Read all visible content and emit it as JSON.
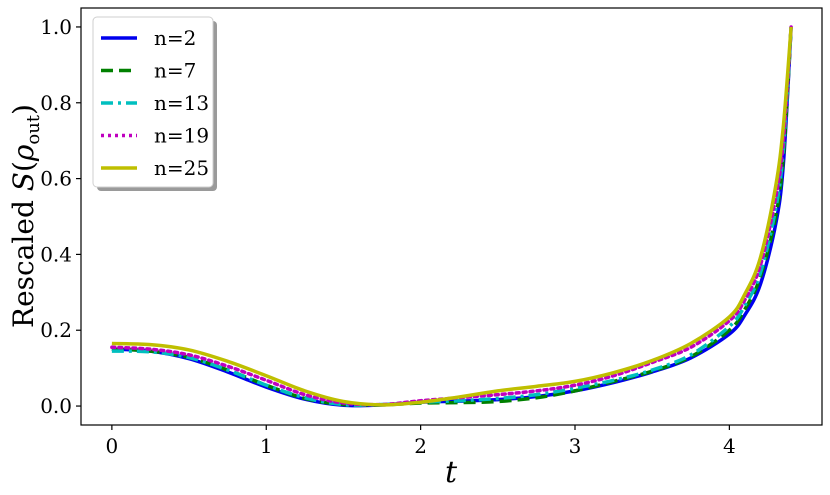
{
  "chart_data": {
    "type": "line",
    "title": "",
    "xlabel": "t",
    "ylabel": "Rescaled S(ρout)",
    "ylabel_parts": {
      "prefix": "Rescaled ",
      "S": "S",
      "open": "(",
      "rho": "ρ",
      "sub": "out",
      "close": ")"
    },
    "xlim": [
      -0.2,
      4.6
    ],
    "ylim": [
      -0.05,
      1.05
    ],
    "xticks": [
      0,
      1,
      2,
      3,
      4
    ],
    "xtick_labels": [
      "0",
      "1",
      "2",
      "3",
      "4"
    ],
    "yticks": [
      0.0,
      0.2,
      0.4,
      0.6,
      0.8,
      1.0
    ],
    "ytick_labels": [
      "0.0",
      "0.2",
      "0.4",
      "0.6",
      "0.8",
      "1.0"
    ],
    "grid": false,
    "legend_position": "top-left",
    "x": [
      0,
      0.25,
      0.5,
      0.75,
      1.0,
      1.25,
      1.5,
      1.75,
      2.0,
      2.25,
      2.5,
      2.75,
      3.0,
      3.25,
      3.5,
      3.75,
      4.0,
      4.1,
      4.2,
      4.3,
      4.35,
      4.4
    ],
    "series": [
      {
        "name": "n=2",
        "color": "#0000ee",
        "dash": "solid",
        "values": [
          0.15,
          0.145,
          0.125,
          0.09,
          0.05,
          0.018,
          0.002,
          0.003,
          0.01,
          0.013,
          0.017,
          0.025,
          0.04,
          0.062,
          0.09,
          0.127,
          0.19,
          0.24,
          0.32,
          0.48,
          0.64,
          1.0
        ]
      },
      {
        "name": "n=7",
        "color": "#008000",
        "dash": "dashed",
        "values": [
          0.15,
          0.145,
          0.128,
          0.095,
          0.055,
          0.02,
          0.004,
          0.003,
          0.008,
          0.009,
          0.012,
          0.022,
          0.04,
          0.065,
          0.092,
          0.13,
          0.2,
          0.255,
          0.34,
          0.5,
          0.66,
          1.0
        ]
      },
      {
        "name": "n=13",
        "color": "#00bfbf",
        "dash": "dashdot",
        "values": [
          0.145,
          0.143,
          0.128,
          0.095,
          0.055,
          0.022,
          0.004,
          0.004,
          0.01,
          0.014,
          0.02,
          0.03,
          0.047,
          0.068,
          0.095,
          0.135,
          0.21,
          0.265,
          0.35,
          0.52,
          0.68,
          1.0
        ]
      },
      {
        "name": "n=19",
        "color": "#bf00bf",
        "dash": "dotted",
        "values": [
          0.155,
          0.15,
          0.135,
          0.105,
          0.068,
          0.03,
          0.008,
          0.004,
          0.014,
          0.022,
          0.03,
          0.04,
          0.055,
          0.08,
          0.115,
          0.155,
          0.225,
          0.28,
          0.37,
          0.55,
          0.7,
          1.0
        ]
      },
      {
        "name": "n=25",
        "color": "#bfbf00",
        "dash": "solid",
        "values": [
          0.165,
          0.162,
          0.148,
          0.118,
          0.08,
          0.04,
          0.012,
          0.003,
          0.01,
          0.024,
          0.04,
          0.052,
          0.065,
          0.088,
          0.12,
          0.165,
          0.235,
          0.295,
          0.39,
          0.58,
          0.74,
          1.0
        ]
      }
    ]
  }
}
